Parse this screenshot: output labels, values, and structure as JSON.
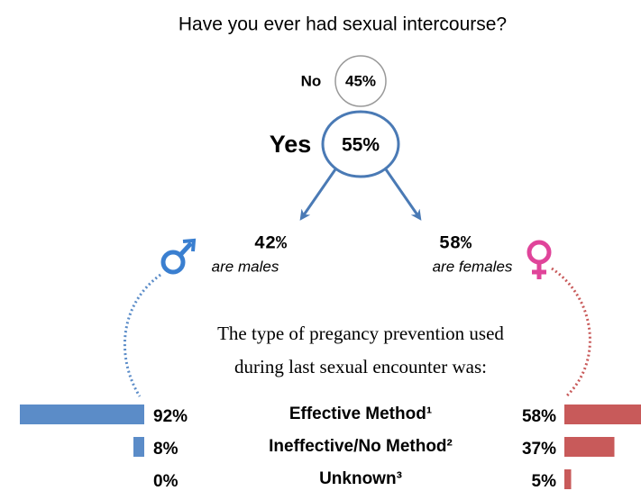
{
  "title": "Have you ever had sexual intercourse?",
  "no": {
    "label": "No",
    "value": "45%"
  },
  "yes": {
    "label": "Yes",
    "value": "55%"
  },
  "males": {
    "value": "42%",
    "label": "are males"
  },
  "females": {
    "value": "58%",
    "label": "are females"
  },
  "question": [
    "The type of pregancy prevention used",
    "during last sexual encounter was:"
  ],
  "methods": [
    "Effective Method¹",
    "Ineffective/No Method²",
    "Unknown³"
  ],
  "male_methods": {
    "color": "#5b8cc8",
    "values": [
      92,
      8,
      0
    ],
    "value_labels": [
      "92%",
      "8%",
      "0%"
    ]
  },
  "female_methods": {
    "color": "#c85a5a",
    "values": [
      58,
      37,
      5
    ],
    "value_labels": [
      "58%",
      "37%",
      "5%"
    ]
  }
}
